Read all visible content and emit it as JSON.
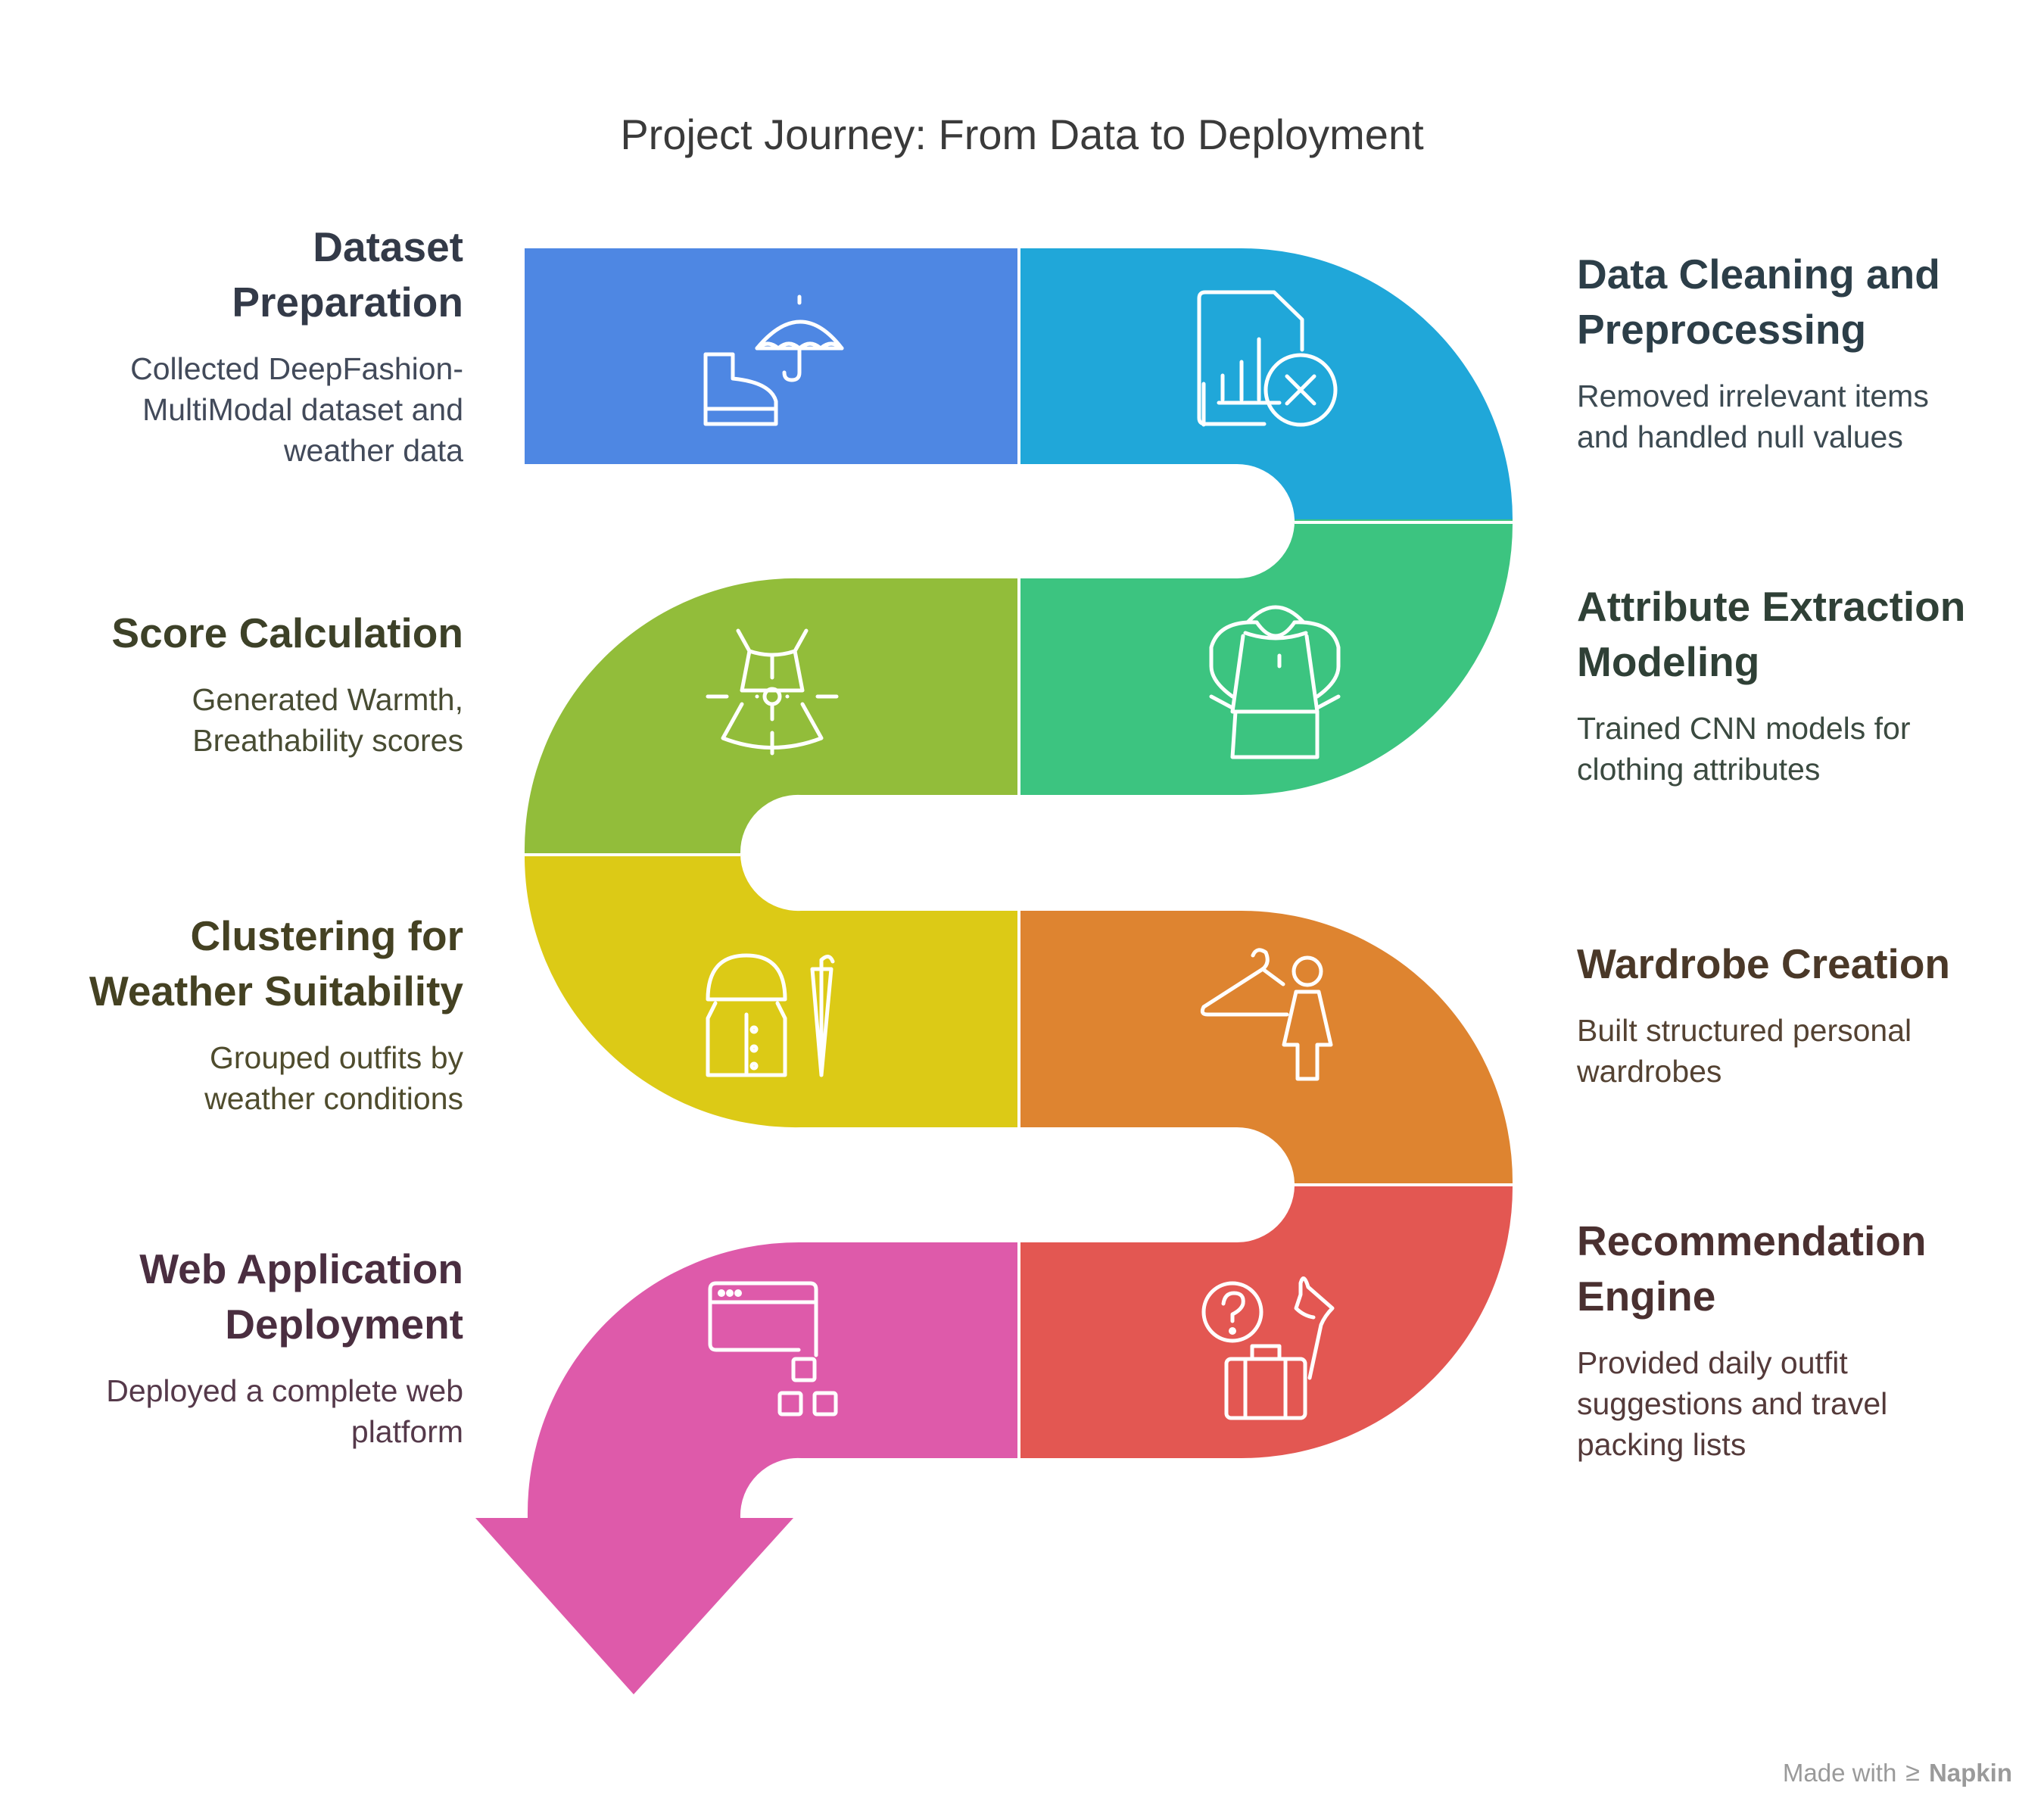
{
  "title": "Project Journey: From Data to Deployment",
  "steps": [
    {
      "title": "Dataset\nPreparation",
      "description": "Collected DeepFashion-\nMultiModal dataset and\nweather data",
      "color": "#4e87e3",
      "icon": "boot-umbrella-icon",
      "title_color": "#333a48",
      "desc_color": "#424a5a"
    },
    {
      "title": "Data Cleaning and\nPreprocessing",
      "description": "Removed irrelevant items\nand handled null values",
      "color": "#20a7d9",
      "icon": "document-chart-x-icon",
      "title_color": "#2c3e48",
      "desc_color": "#3c4a52"
    },
    {
      "title": "Attribute Extraction\nModeling",
      "description": "Trained CNN models for\nclothing attributes",
      "color": "#3cc480",
      "icon": "hoodie-icon",
      "title_color": "#2f4036",
      "desc_color": "#3b4a40"
    },
    {
      "title": "Score Calculation",
      "description": "Generated Warmth,\nBreathability scores",
      "color": "#92bd3a",
      "icon": "dress-measure-icon",
      "title_color": "#3d4128",
      "desc_color": "#484c33"
    },
    {
      "title": "Clustering for\nWeather Suitability",
      "description": "Grouped outfits by\nweather conditions",
      "color": "#dcca16",
      "icon": "raincoat-umbrella-icon",
      "title_color": "#444122",
      "desc_color": "#4f4c2d"
    },
    {
      "title": "Wardrobe Creation",
      "description": "Built structured personal\nwardrobes",
      "color": "#de8430",
      "icon": "hanger-person-icon",
      "title_color": "#4a3828",
      "desc_color": "#544232"
    },
    {
      "title": "Recommendation\nEngine",
      "description": "Provided daily outfit\nsuggestions and travel\npacking lists",
      "color": "#e35752",
      "icon": "suitcase-umbrella-question-icon",
      "title_color": "#4a3030",
      "desc_color": "#543a3a"
    },
    {
      "title": "Web Application\nDeployment",
      "description": "Deployed a complete web\nplatform",
      "color": "#de5aaa",
      "icon": "browser-window-icon",
      "title_color": "#4a2e40",
      "desc_color": "#55394a"
    }
  ],
  "footer": {
    "prefix": "Made with",
    "brand": "Napkin"
  }
}
